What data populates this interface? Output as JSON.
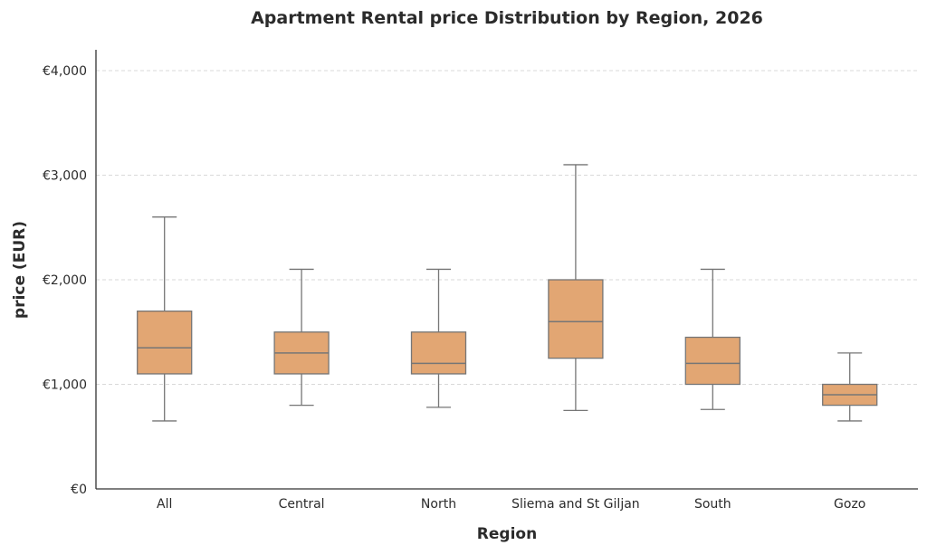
{
  "chart_data": {
    "type": "box",
    "title": "Apartment Rental price Distribution by Region, 2026",
    "xlabel": "Region",
    "ylabel": "price (EUR)",
    "ylim": [
      0,
      4200
    ],
    "yticks": [
      0,
      1000,
      2000,
      3000,
      4000
    ],
    "ytick_labels": [
      "€0",
      "€1,000",
      "€2,000",
      "€3,000",
      "€4,000"
    ],
    "grid": "horizontal dashed",
    "box_color": "#e2a673",
    "edge_color": "#767676",
    "categories": [
      "All",
      "Central",
      "North",
      "Sliema and St Giljan",
      "South",
      "Gozo"
    ],
    "boxes": [
      {
        "whisker_low": 650,
        "q1": 1100,
        "median": 1350,
        "q3": 1700,
        "whisker_high": 2600
      },
      {
        "whisker_low": 800,
        "q1": 1100,
        "median": 1300,
        "q3": 1500,
        "whisker_high": 2100
      },
      {
        "whisker_low": 780,
        "q1": 1100,
        "median": 1200,
        "q3": 1500,
        "whisker_high": 2100
      },
      {
        "whisker_low": 750,
        "q1": 1250,
        "median": 1600,
        "q3": 2000,
        "whisker_high": 3100
      },
      {
        "whisker_low": 760,
        "q1": 1000,
        "median": 1200,
        "q3": 1450,
        "whisker_high": 2100
      },
      {
        "whisker_low": 650,
        "q1": 800,
        "median": 900,
        "q3": 1000,
        "whisker_high": 1300
      }
    ]
  }
}
